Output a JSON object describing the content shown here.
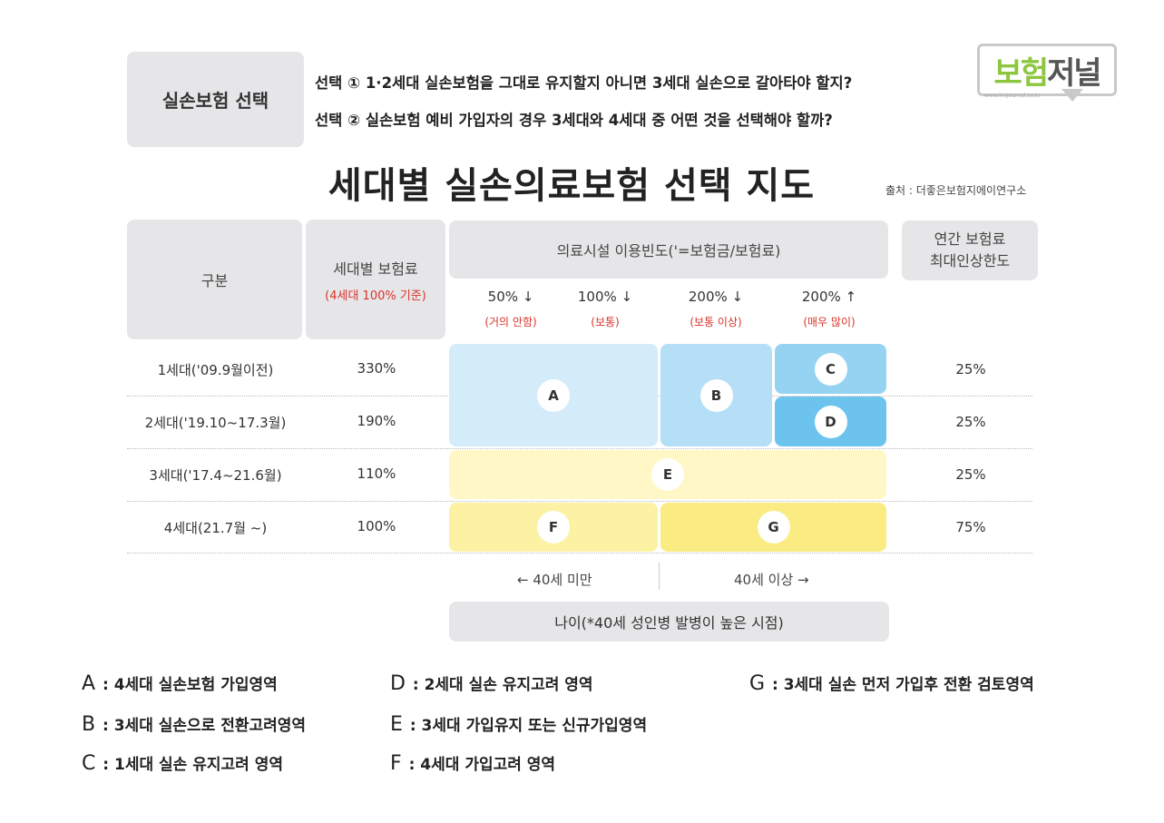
{
  "header": {
    "select_label": "실손보험 선택",
    "q1": "선택 ① 1·2세대 실손보험을 그대로 유지할지 아니면 3세대 실손으로 갈아타야 할지?",
    "q2": "선택 ②  실손보험 예비 가입자의 경우 3세대와 4세대 중 어떤 것을 선택해야 할까?"
  },
  "logo": {
    "text_part1": "보험",
    "text_part2": "저널",
    "url": "www.insjournal.co.kr"
  },
  "title": "세대별 실손의료보험 선택 지도",
  "source": "출처 :  더좋은보험지에이연구소",
  "table": {
    "col_category": "구분",
    "col_premium": "세대별 보험료",
    "col_premium_sub": "(4세대 100% 기준)",
    "col_frequency": "의료시설 이용빈도('=보험금/보험료)",
    "col_limit_line1": "연간 보험료",
    "col_limit_line2": "최대인상한도",
    "frequency_levels": [
      {
        "pct": "50% ↓",
        "label": "(거의 안함)"
      },
      {
        "pct": "100% ↓",
        "label": "(보통)"
      },
      {
        "pct": "200% ↓",
        "label": "(보통 이상)"
      },
      {
        "pct": "200% ↑",
        "label": "(매우 많이)"
      }
    ],
    "rows": [
      {
        "label": "1세대('09.9월이전)",
        "premium": "330%",
        "limit": "25%"
      },
      {
        "label": "2세대('19.10~17.3월)",
        "premium": "190%",
        "limit": "25%"
      },
      {
        "label": "3세대('17.4~21.6월)",
        "premium": "110%",
        "limit": "25%"
      },
      {
        "label": "4세대(21.7월 ~)",
        "premium": "100%",
        "limit": "75%"
      }
    ],
    "zones": {
      "A": "A",
      "B": "B",
      "C": "C",
      "D": "D",
      "E": "E",
      "F": "F",
      "G": "G"
    },
    "colors": {
      "light_blue": "#d4ecfa",
      "mid_blue": "#b5dff6",
      "blue": "#96d3f3",
      "dark_blue": "#6cc4ee",
      "light_yellow": "#fff7c6",
      "yellow": "#fdf1a3",
      "deep_yellow": "#fbeb83"
    },
    "age_under": "←  40세 미만",
    "age_over": "40세 이상  →",
    "age_caption": "나이(*40세 성인병 발병이 높은 시점)"
  },
  "legend": [
    {
      "letter": "A",
      "text": " : 4세대 실손보험 가입영역"
    },
    {
      "letter": "B",
      "text": " : 3세대 실손으로 전환고려영역"
    },
    {
      "letter": "C",
      "text": " : 1세대 실손 유지고려 영역"
    },
    {
      "letter": "D",
      "text": " : 2세대 실손 유지고려 영역"
    },
    {
      "letter": "E",
      "text": " :  3세대 가입유지 또는 신규가입영역"
    },
    {
      "letter": "F",
      "text": " :  4세대 가입고려 영역"
    },
    {
      "letter": "G",
      "text": " : 3세대 실손 먼저 가입후 전환 검토영역"
    }
  ]
}
